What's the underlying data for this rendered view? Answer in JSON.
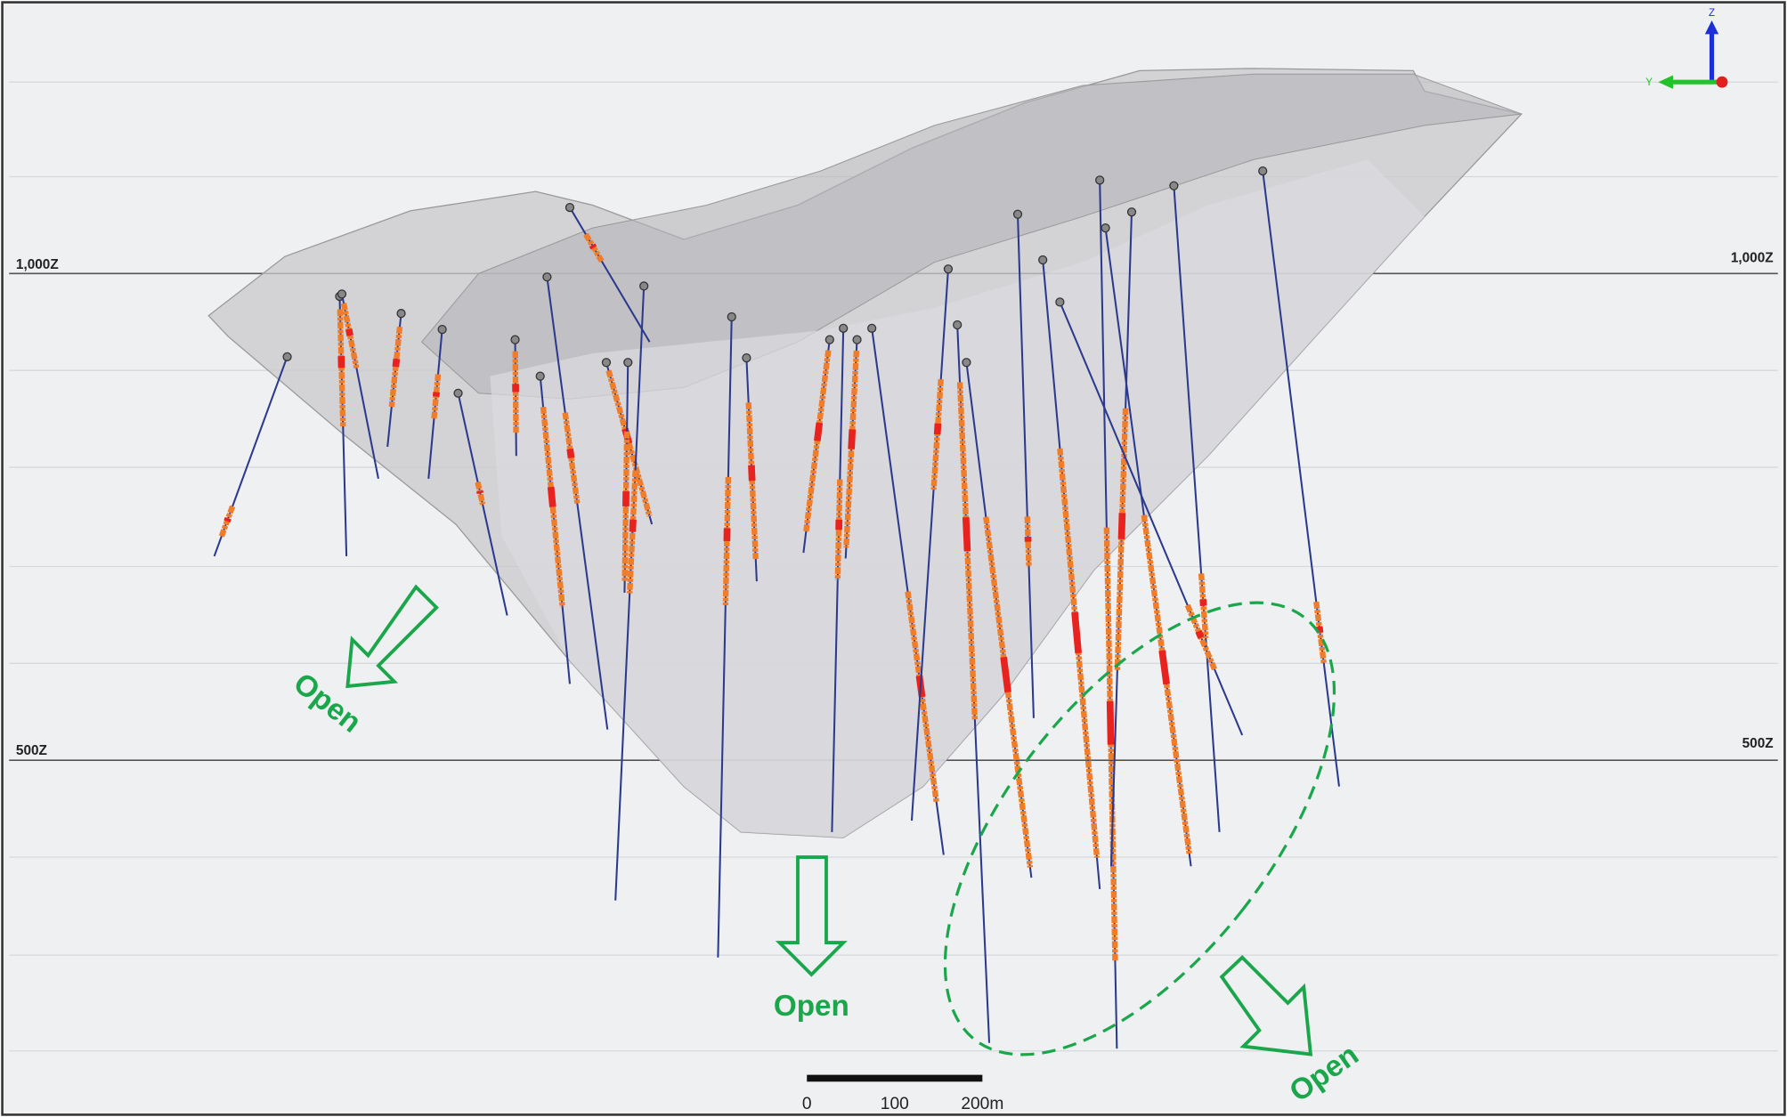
{
  "elevation_labels": {
    "upper_left": "1,000Z",
    "upper_right": "1,000Z",
    "lower_left": "500Z",
    "lower_right": "500Z"
  },
  "open_labels": [
    "Open",
    "Open",
    "Open"
  ],
  "scale_bar": {
    "labels": [
      "0",
      "100",
      "200m"
    ]
  },
  "axis_triad": {
    "z": "Z",
    "y": "Y"
  }
}
